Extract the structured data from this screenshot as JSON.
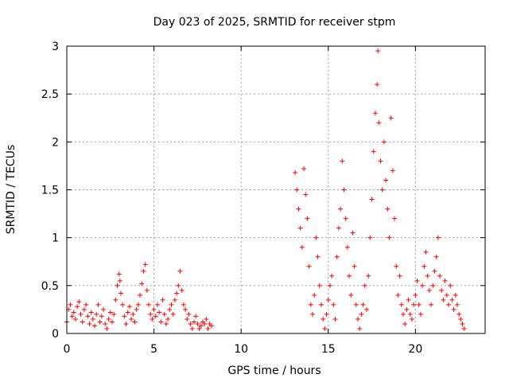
{
  "chart_data": {
    "type": "scatter",
    "title": "Day 023 of 2025, SRMTID for receiver stpm",
    "xlabel": "GPS time / hours",
    "ylabel": "SRMTID / TECUs",
    "xlim": [
      0,
      24
    ],
    "ylim": [
      0,
      3
    ],
    "xticks": [
      0,
      5,
      10,
      15,
      20
    ],
    "yticks": [
      0,
      0.5,
      1,
      1.5,
      2,
      2.5,
      3
    ],
    "ytick_labels": [
      "0",
      "0.5",
      "1",
      "1.5",
      "2",
      "2.5",
      "3"
    ],
    "xtick_labels": [
      "0",
      "5",
      "10",
      "15",
      "20"
    ],
    "grid": true,
    "marker": "+",
    "color": "#ff0000",
    "series": [
      {
        "name": "SRMTID",
        "points": [
          [
            0.0,
            0.12
          ],
          [
            0.1,
            0.25
          ],
          [
            0.2,
            0.3
          ],
          [
            0.3,
            0.18
          ],
          [
            0.4,
            0.22
          ],
          [
            0.5,
            0.15
          ],
          [
            0.6,
            0.28
          ],
          [
            0.7,
            0.33
          ],
          [
            0.8,
            0.2
          ],
          [
            0.9,
            0.12
          ],
          [
            1.0,
            0.25
          ],
          [
            1.1,
            0.3
          ],
          [
            1.2,
            0.18
          ],
          [
            1.3,
            0.1
          ],
          [
            1.4,
            0.22
          ],
          [
            1.5,
            0.15
          ],
          [
            1.6,
            0.08
          ],
          [
            1.7,
            0.2
          ],
          [
            1.8,
            0.3
          ],
          [
            1.9,
            0.12
          ],
          [
            2.0,
            0.18
          ],
          [
            2.1,
            0.25
          ],
          [
            2.2,
            0.1
          ],
          [
            2.3,
            0.05
          ],
          [
            2.4,
            0.15
          ],
          [
            2.5,
            0.22
          ],
          [
            2.6,
            0.12
          ],
          [
            2.7,
            0.2
          ],
          [
            2.8,
            0.35
          ],
          [
            2.9,
            0.5
          ],
          [
            3.0,
            0.62
          ],
          [
            3.05,
            0.55
          ],
          [
            3.1,
            0.42
          ],
          [
            3.2,
            0.3
          ],
          [
            3.3,
            0.18
          ],
          [
            3.4,
            0.1
          ],
          [
            3.5,
            0.22
          ],
          [
            3.6,
            0.28
          ],
          [
            3.7,
            0.15
          ],
          [
            3.8,
            0.2
          ],
          [
            3.9,
            0.12
          ],
          [
            4.0,
            0.25
          ],
          [
            4.1,
            0.3
          ],
          [
            4.2,
            0.4
          ],
          [
            4.3,
            0.52
          ],
          [
            4.4,
            0.65
          ],
          [
            4.5,
            0.72
          ],
          [
            4.6,
            0.45
          ],
          [
            4.7,
            0.3
          ],
          [
            4.8,
            0.2
          ],
          [
            4.9,
            0.15
          ],
          [
            5.0,
            0.25
          ],
          [
            5.1,
            0.18
          ],
          [
            5.2,
            0.3
          ],
          [
            5.3,
            0.22
          ],
          [
            5.4,
            0.12
          ],
          [
            5.5,
            0.35
          ],
          [
            5.6,
            0.2
          ],
          [
            5.7,
            0.1
          ],
          [
            5.8,
            0.15
          ],
          [
            5.9,
            0.25
          ],
          [
            6.0,
            0.3
          ],
          [
            6.1,
            0.2
          ],
          [
            6.2,
            0.35
          ],
          [
            6.3,
            0.42
          ],
          [
            6.4,
            0.5
          ],
          [
            6.5,
            0.65
          ],
          [
            6.6,
            0.45
          ],
          [
            6.7,
            0.3
          ],
          [
            6.8,
            0.25
          ],
          [
            6.9,
            0.15
          ],
          [
            7.0,
            0.2
          ],
          [
            7.1,
            0.1
          ],
          [
            7.2,
            0.05
          ],
          [
            7.3,
            0.12
          ],
          [
            7.4,
            0.18
          ],
          [
            7.5,
            0.1
          ],
          [
            7.6,
            0.05
          ],
          [
            7.7,
            0.08
          ],
          [
            7.8,
            0.12
          ],
          [
            7.9,
            0.1
          ],
          [
            8.0,
            0.15
          ],
          [
            8.1,
            0.05
          ],
          [
            8.2,
            0.1
          ],
          [
            8.3,
            0.08
          ],
          [
            13.1,
            1.68
          ],
          [
            13.2,
            1.5
          ],
          [
            13.3,
            1.3
          ],
          [
            13.4,
            1.1
          ],
          [
            13.5,
            0.9
          ],
          [
            13.6,
            1.72
          ],
          [
            13.7,
            1.45
          ],
          [
            13.8,
            1.2
          ],
          [
            13.9,
            0.7
          ],
          [
            14.0,
            0.3
          ],
          [
            14.1,
            0.2
          ],
          [
            14.2,
            0.4
          ],
          [
            14.3,
            1.0
          ],
          [
            14.4,
            0.8
          ],
          [
            14.5,
            0.5
          ],
          [
            14.6,
            0.3
          ],
          [
            14.7,
            0.15
          ],
          [
            14.8,
            0.05
          ],
          [
            14.9,
            0.2
          ],
          [
            15.0,
            0.35
          ],
          [
            15.1,
            0.5
          ],
          [
            15.2,
            0.6
          ],
          [
            15.3,
            0.3
          ],
          [
            15.4,
            0.15
          ],
          [
            15.5,
            0.8
          ],
          [
            15.6,
            1.1
          ],
          [
            15.7,
            1.3
          ],
          [
            15.8,
            1.8
          ],
          [
            15.9,
            1.5
          ],
          [
            16.0,
            1.2
          ],
          [
            16.1,
            0.9
          ],
          [
            16.2,
            0.6
          ],
          [
            16.3,
            0.4
          ],
          [
            16.4,
            1.05
          ],
          [
            16.5,
            0.7
          ],
          [
            16.6,
            0.3
          ],
          [
            16.7,
            0.15
          ],
          [
            16.8,
            0.05
          ],
          [
            16.9,
            0.2
          ],
          [
            17.0,
            0.3
          ],
          [
            17.1,
            0.5
          ],
          [
            17.2,
            0.25
          ],
          [
            17.3,
            0.6
          ],
          [
            17.4,
            1.0
          ],
          [
            17.5,
            1.4
          ],
          [
            17.6,
            1.9
          ],
          [
            17.7,
            2.3
          ],
          [
            17.8,
            2.6
          ],
          [
            17.85,
            2.95
          ],
          [
            17.9,
            2.2
          ],
          [
            18.0,
            1.8
          ],
          [
            18.1,
            1.5
          ],
          [
            18.2,
            2.0
          ],
          [
            18.3,
            1.6
          ],
          [
            18.4,
            1.3
          ],
          [
            18.5,
            1.0
          ],
          [
            18.6,
            2.25
          ],
          [
            18.7,
            1.7
          ],
          [
            18.8,
            1.2
          ],
          [
            18.9,
            0.7
          ],
          [
            19.0,
            0.4
          ],
          [
            19.1,
            0.6
          ],
          [
            19.2,
            0.3
          ],
          [
            19.3,
            0.2
          ],
          [
            19.4,
            0.1
          ],
          [
            19.5,
            0.25
          ],
          [
            19.6,
            0.35
          ],
          [
            19.7,
            0.2
          ],
          [
            19.8,
            0.15
          ],
          [
            19.9,
            0.3
          ],
          [
            20.0,
            0.4
          ],
          [
            20.1,
            0.55
          ],
          [
            20.2,
            0.3
          ],
          [
            20.3,
            0.2
          ],
          [
            20.4,
            0.5
          ],
          [
            20.5,
            0.7
          ],
          [
            20.6,
            0.85
          ],
          [
            20.7,
            0.6
          ],
          [
            20.8,
            0.45
          ],
          [
            20.9,
            0.3
          ],
          [
            21.0,
            0.5
          ],
          [
            21.1,
            0.65
          ],
          [
            21.2,
            0.8
          ],
          [
            21.3,
            1.0
          ],
          [
            21.4,
            0.6
          ],
          [
            21.5,
            0.45
          ],
          [
            21.6,
            0.35
          ],
          [
            21.7,
            0.55
          ],
          [
            21.8,
            0.4
          ],
          [
            21.9,
            0.3
          ],
          [
            22.0,
            0.5
          ],
          [
            22.1,
            0.35
          ],
          [
            22.2,
            0.25
          ],
          [
            22.3,
            0.4
          ],
          [
            22.4,
            0.3
          ],
          [
            22.5,
            0.2
          ],
          [
            22.6,
            0.15
          ],
          [
            22.7,
            0.1
          ],
          [
            22.8,
            0.05
          ]
        ]
      }
    ]
  }
}
